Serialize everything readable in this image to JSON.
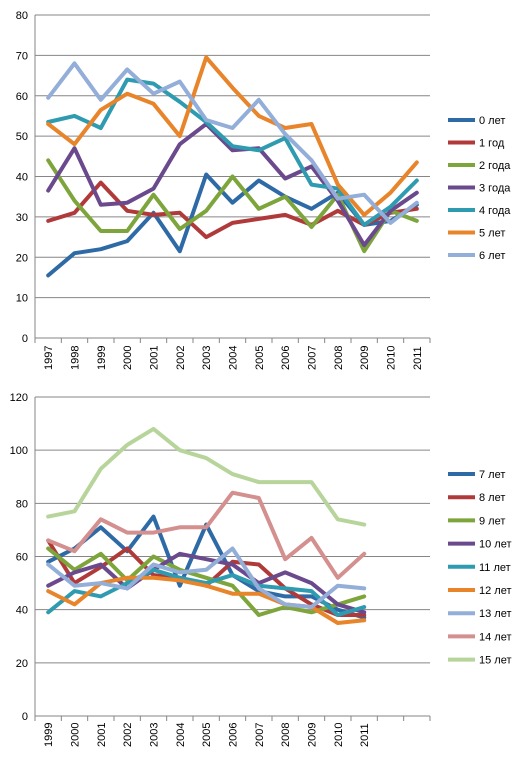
{
  "chart_data": [
    {
      "type": "line",
      "x": [
        "1997",
        "1998",
        "1999",
        "2000",
        "2001",
        "2002",
        "2003",
        "2004",
        "2005",
        "2006",
        "2007",
        "2008",
        "2009",
        "2010",
        "2011"
      ],
      "ylim": [
        0,
        80
      ],
      "yticks": [
        0,
        10,
        20,
        30,
        40,
        50,
        60,
        70,
        80
      ],
      "grid": true,
      "legend": "right",
      "series": [
        {
          "name": "0 лет",
          "color": "#2e6aa6",
          "values": [
            15.5,
            21,
            22,
            24,
            31,
            21.5,
            40.5,
            33.5,
            39,
            35,
            32,
            36,
            28,
            29,
            33
          ]
        },
        {
          "name": "1 год",
          "color": "#b03a3a",
          "values": [
            29,
            31,
            38.5,
            31.5,
            30.5,
            31,
            25,
            28.5,
            29.5,
            30.5,
            28,
            31.5,
            28,
            31,
            32
          ]
        },
        {
          "name": "2 года",
          "color": "#7da53b",
          "values": [
            44,
            34,
            26.5,
            26.5,
            35.5,
            27,
            31.5,
            40,
            32,
            35,
            27.5,
            35.5,
            21.5,
            31.5,
            29
          ]
        },
        {
          "name": "3 года",
          "color": "#6a4a8c",
          "values": [
            36.5,
            47,
            33,
            33.5,
            37,
            48,
            53,
            46.5,
            47,
            39.5,
            42.5,
            34,
            23,
            31.5,
            36
          ]
        },
        {
          "name": "4 года",
          "color": "#2f9bb0",
          "values": [
            53.5,
            55,
            52,
            64,
            63,
            58.5,
            53.5,
            47.5,
            46.5,
            49.5,
            38,
            37,
            28,
            32.5,
            39
          ]
        },
        {
          "name": "5 лет",
          "color": "#e8842a",
          "values": [
            53,
            48,
            56.5,
            60.5,
            58,
            50,
            69.5,
            62,
            55,
            52,
            53,
            38,
            30.5,
            36,
            43.5
          ]
        },
        {
          "name": "6 лет",
          "color": "#93aed8",
          "values": [
            59.5,
            68,
            59,
            66.5,
            60.5,
            63.5,
            54,
            52,
            59,
            50.5,
            44,
            34.5,
            35.5,
            28.5,
            33.5
          ]
        }
      ]
    },
    {
      "type": "line",
      "x": [
        "1999",
        "2000",
        "2001",
        "2002",
        "2003",
        "2004",
        "2005",
        "2006",
        "2007",
        "2008",
        "2009",
        "2010",
        "2011"
      ],
      "ylim": [
        0,
        120
      ],
      "yticks": [
        0,
        20,
        40,
        60,
        80,
        100,
        120
      ],
      "grid": true,
      "legend": "right",
      "series": [
        {
          "name": "7 лет",
          "color": "#2e6aa6",
          "values": [
            58,
            63,
            71,
            62,
            75,
            49,
            72,
            53,
            47,
            45,
            45,
            40,
            37
          ]
        },
        {
          "name": "8 лет",
          "color": "#b03a3a",
          "values": [
            66,
            50,
            56,
            63,
            53,
            52,
            49,
            58,
            57,
            48,
            42,
            38,
            38
          ]
        },
        {
          "name": "9 лет",
          "color": "#7da53b",
          "values": [
            63,
            55,
            61,
            51,
            60,
            55,
            52,
            49,
            38,
            41,
            39,
            42,
            45
          ]
        },
        {
          "name": "10 лет",
          "color": "#6a4a8c",
          "values": [
            49,
            54,
            57,
            48,
            55,
            61,
            59,
            57,
            50,
            54,
            50,
            42,
            39
          ]
        },
        {
          "name": "11 лет",
          "color": "#2f9bb0",
          "values": [
            39,
            47,
            45,
            50,
            55,
            52,
            50,
            53,
            49,
            48,
            47,
            38,
            41
          ]
        },
        {
          "name": "12 лет",
          "color": "#e8842a",
          "values": [
            47,
            42,
            50,
            52,
            52,
            51,
            49,
            46,
            46,
            42,
            41,
            35,
            36
          ]
        },
        {
          "name": "13 лет",
          "color": "#93aed8",
          "values": [
            57,
            49,
            50,
            48,
            57,
            54,
            55,
            63,
            48,
            42,
            41,
            49,
            48
          ]
        },
        {
          "name": "14 лет",
          "color": "#d48f8f",
          "values": [
            66,
            62,
            74,
            69,
            69,
            71,
            71,
            84,
            82,
            59,
            67,
            52,
            61
          ]
        },
        {
          "name": "15 лет",
          "color": "#b7d59a",
          "values": [
            75,
            77,
            93,
            102,
            108,
            100,
            97,
            91,
            88,
            88,
            88,
            74,
            72
          ]
        }
      ]
    }
  ]
}
